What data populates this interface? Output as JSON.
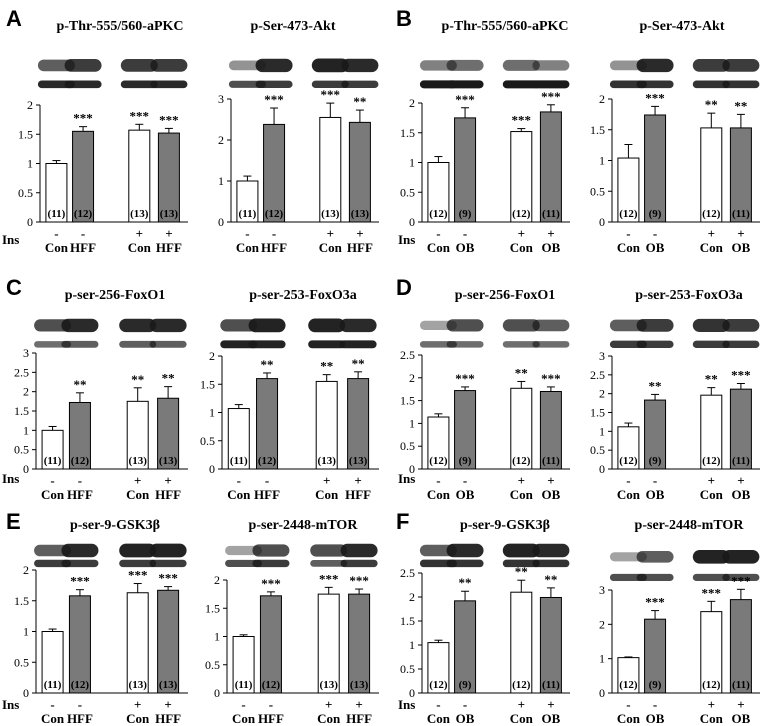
{
  "figure_labels": [
    "A",
    "B",
    "C",
    "D",
    "E",
    "F"
  ],
  "row_label": "Ins",
  "colors": {
    "control": "#ffffff",
    "treated": "#7a7a7a",
    "axis": "#000000",
    "blot_band": "#1a1a1a"
  },
  "chart_data": [
    {
      "type": "bar",
      "title": "p-Thr-555/560-aPKC",
      "ylim": [
        0,
        2
      ],
      "yticks": [
        "0",
        "0.5",
        "1",
        "1.5",
        "2"
      ],
      "categories": [
        "Con",
        "HFF",
        "Con",
        "HFF"
      ],
      "insulin": [
        "-",
        "-",
        "+",
        "+"
      ],
      "values": [
        1.0,
        1.55,
        1.57,
        1.52
      ],
      "errors": [
        0.05,
        0.08,
        0.1,
        0.08
      ],
      "significance": [
        "",
        "***",
        "***",
        "***"
      ],
      "n": [
        "(11)",
        "(12)",
        "(13)",
        "(13)"
      ]
    },
    {
      "type": "bar",
      "title": "p-Ser-473-Akt",
      "ylim": [
        0,
        3
      ],
      "yticks": [
        "0",
        "1",
        "2",
        "3"
      ],
      "categories": [
        "Con",
        "HFF",
        "Con",
        "HFF"
      ],
      "insulin": [
        "-",
        "-",
        "+",
        "+"
      ],
      "values": [
        1.0,
        2.38,
        2.55,
        2.43
      ],
      "errors": [
        0.12,
        0.4,
        0.35,
        0.3
      ],
      "significance": [
        "",
        "***",
        "***",
        "**"
      ],
      "n": [
        "(11)",
        "(12)",
        "(13)",
        "(13)"
      ]
    },
    {
      "type": "bar",
      "title": "p-Thr-555/560-aPKC",
      "ylim": [
        0,
        2
      ],
      "yticks": [
        "0",
        "0.5",
        "1",
        "1.5",
        "2"
      ],
      "categories": [
        "Con",
        "OB",
        "Con",
        "OB"
      ],
      "insulin": [
        "-",
        "-",
        "+",
        "+"
      ],
      "values": [
        1.0,
        1.75,
        1.52,
        1.85
      ],
      "errors": [
        0.1,
        0.17,
        0.05,
        0.12
      ],
      "significance": [
        "",
        "***",
        "***",
        "***"
      ],
      "n": [
        "(12)",
        "(9)",
        "(12)",
        "(11)"
      ]
    },
    {
      "type": "bar",
      "title": "p-Ser-473-Akt",
      "ylim": [
        0,
        2
      ],
      "yticks": [
        "0",
        "0.5",
        "1",
        "1.5",
        "2"
      ],
      "categories": [
        "Con",
        "OB",
        "Con",
        "OB"
      ],
      "insulin": [
        "-",
        "-",
        "+",
        "+"
      ],
      "values": [
        1.04,
        1.74,
        1.53,
        1.53
      ],
      "errors": [
        0.22,
        0.14,
        0.24,
        0.22
      ],
      "significance": [
        "",
        "***",
        "**",
        "**"
      ],
      "n": [
        "(12)",
        "(9)",
        "(12)",
        "(11)"
      ]
    },
    {
      "type": "bar",
      "title": "p-ser-256-FoxO1",
      "ylim": [
        0,
        3
      ],
      "yticks": [
        "0",
        "0.5",
        "1",
        "1.5",
        "2",
        "2.5",
        "3"
      ],
      "categories": [
        "Con",
        "HFF",
        "Con",
        "HFF"
      ],
      "insulin": [
        "-",
        "-",
        "+",
        "+"
      ],
      "values": [
        1.0,
        1.72,
        1.75,
        1.83
      ],
      "errors": [
        0.1,
        0.25,
        0.35,
        0.3
      ],
      "significance": [
        "",
        "**",
        "**",
        "**"
      ],
      "n": [
        "(11)",
        "(12)",
        "(13)",
        "(13)"
      ]
    },
    {
      "type": "bar",
      "title": "p-ser-253-FoxO3a",
      "ylim": [
        0,
        2
      ],
      "yticks": [
        "0",
        "0.5",
        "1",
        "1.5",
        "2"
      ],
      "categories": [
        "Con",
        "HFF",
        "Con",
        "HFF"
      ],
      "insulin": [
        "-",
        "-",
        "+",
        "+"
      ],
      "values": [
        1.07,
        1.6,
        1.55,
        1.6
      ],
      "errors": [
        0.07,
        0.1,
        0.12,
        0.12
      ],
      "significance": [
        "",
        "**",
        "**",
        "**"
      ],
      "n": [
        "(11)",
        "(12)",
        "(13)",
        "(13)"
      ]
    },
    {
      "type": "bar",
      "title": "p-ser-256-FoxO1",
      "ylim": [
        0,
        2.5
      ],
      "yticks": [
        "0",
        "0.5",
        "1",
        "1.5",
        "2",
        "2.5"
      ],
      "categories": [
        "Con",
        "OB",
        "Con",
        "OB"
      ],
      "insulin": [
        "-",
        "-",
        "+",
        "+"
      ],
      "values": [
        1.14,
        1.72,
        1.77,
        1.7
      ],
      "errors": [
        0.07,
        0.08,
        0.15,
        0.1
      ],
      "significance": [
        "",
        "***",
        "**",
        "***"
      ],
      "n": [
        "(12)",
        "(9)",
        "(12)",
        "(11)"
      ]
    },
    {
      "type": "bar",
      "title": "p-ser-253-FoxO3a",
      "ylim": [
        0,
        3
      ],
      "yticks": [
        "0",
        "0.5",
        "1",
        "1.5",
        "2",
        "2.5",
        "3"
      ],
      "categories": [
        "Con",
        "OB",
        "Con",
        "OB"
      ],
      "insulin": [
        "-",
        "-",
        "+",
        "+"
      ],
      "values": [
        1.12,
        1.83,
        1.96,
        2.12
      ],
      "errors": [
        0.1,
        0.15,
        0.2,
        0.15
      ],
      "significance": [
        "",
        "**",
        "**",
        "***"
      ],
      "n": [
        "(12)",
        "(9)",
        "(12)",
        "(11)"
      ]
    },
    {
      "type": "bar",
      "title": "p-ser-9-GSK3β",
      "ylim": [
        0,
        2
      ],
      "yticks": [
        "0",
        "0.5",
        "1",
        "1.5",
        "2"
      ],
      "categories": [
        "Con",
        "HFF",
        "Con",
        "HFF"
      ],
      "insulin": [
        "-",
        "-",
        "+",
        "+"
      ],
      "values": [
        1.0,
        1.58,
        1.63,
        1.67
      ],
      "errors": [
        0.04,
        0.1,
        0.15,
        0.06
      ],
      "significance": [
        "",
        "***",
        "***",
        "***"
      ],
      "n": [
        "(11)",
        "(12)",
        "(13)",
        "(13)"
      ]
    },
    {
      "type": "bar",
      "title": "p-ser-2448-mTOR",
      "ylim": [
        0,
        2
      ],
      "yticks": [
        "0",
        "0.5",
        "1",
        "1.5",
        "2"
      ],
      "categories": [
        "Con",
        "HFF",
        "Con",
        "HFF"
      ],
      "insulin": [
        "-",
        "-",
        "+",
        "+"
      ],
      "values": [
        1.0,
        1.72,
        1.75,
        1.75
      ],
      "errors": [
        0.03,
        0.07,
        0.12,
        0.09
      ],
      "significance": [
        "",
        "***",
        "***",
        "***"
      ],
      "n": [
        "(11)",
        "(12)",
        "(13)",
        "(13)"
      ]
    },
    {
      "type": "bar",
      "title": "p-ser-9-GSK3β",
      "ylim": [
        0,
        2.5
      ],
      "yticks": [
        "0",
        "0.5",
        "1",
        "1.5",
        "2",
        "2.5"
      ],
      "categories": [
        "Con",
        "OB",
        "Con",
        "OB"
      ],
      "insulin": [
        "-",
        "-",
        "+",
        "+"
      ],
      "values": [
        1.05,
        1.92,
        2.1,
        1.99
      ],
      "errors": [
        0.05,
        0.2,
        0.25,
        0.2
      ],
      "significance": [
        "",
        "**",
        "**",
        "**"
      ],
      "n": [
        "(12)",
        "(9)",
        "(12)",
        "(11)"
      ]
    },
    {
      "type": "bar",
      "title": "p-ser-2448-mTOR",
      "ylim": [
        0,
        3
      ],
      "yticks": [
        "0",
        "1",
        "2",
        "3"
      ],
      "categories": [
        "Con",
        "OB",
        "Con",
        "OB"
      ],
      "insulin": [
        "-",
        "-",
        "+",
        "+"
      ],
      "values": [
        1.03,
        2.15,
        2.37,
        2.72
      ],
      "errors": [
        0.02,
        0.25,
        0.3,
        0.3
      ],
      "significance": [
        "",
        "***",
        "***",
        "***"
      ],
      "n": [
        "(12)",
        "(9)",
        "(12)",
        "(11)"
      ]
    }
  ]
}
